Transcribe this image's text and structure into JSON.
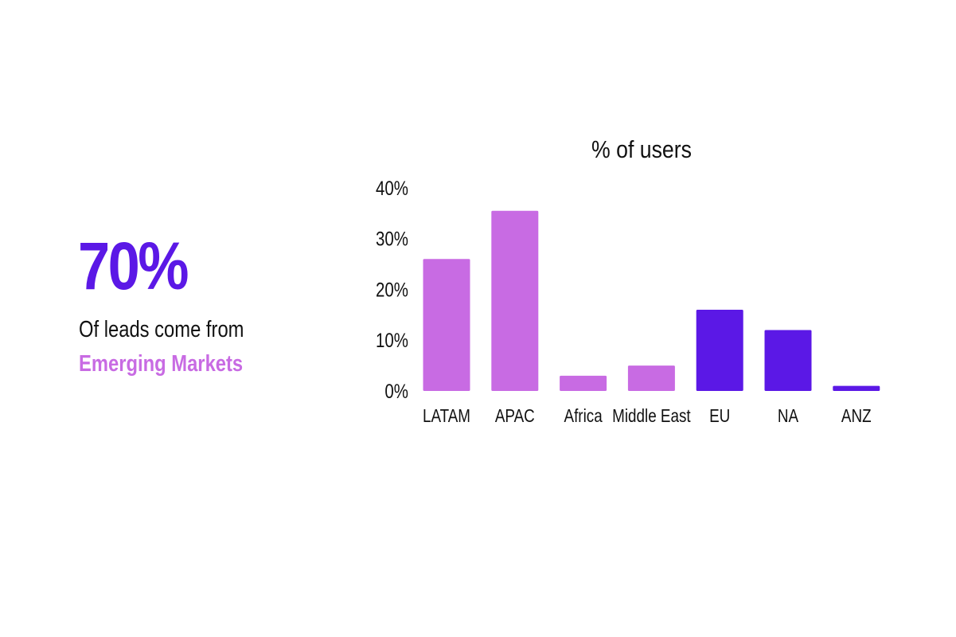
{
  "headline": {
    "stat": "70%",
    "text": "Of leads come from",
    "highlight": "Emerging Markets",
    "stat_color": "#5b18e6",
    "highlight_color": "#c86be3"
  },
  "chart_data": {
    "type": "bar",
    "title": "% of users",
    "categories": [
      "LATAM",
      "APAC",
      "Africa",
      "Middle East",
      "EU",
      "NA",
      "ANZ"
    ],
    "values": [
      26,
      35.5,
      3,
      5,
      16,
      12,
      1
    ],
    "colors": [
      "#c86be3",
      "#c86be3",
      "#c86be3",
      "#c86be3",
      "#5b18e6",
      "#5b18e6",
      "#5b18e6"
    ],
    "ylim": [
      0,
      40
    ],
    "yticks": [
      "0%",
      "10%",
      "20%",
      "30%",
      "40%"
    ],
    "xlabel": "",
    "ylabel": "",
    "grid": false,
    "legend": "none"
  }
}
